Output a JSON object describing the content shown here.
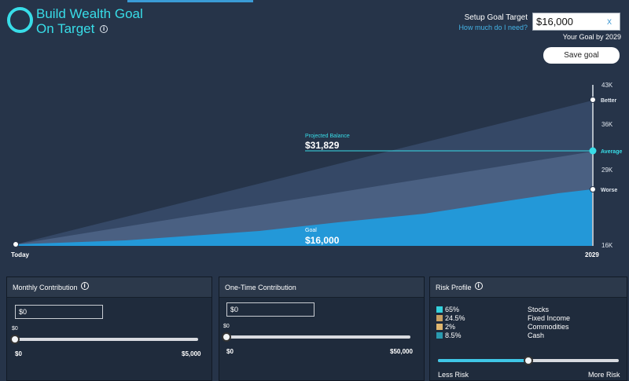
{
  "header": {
    "title": "Build Wealth Goal On Target",
    "info_glyph": "i",
    "setup_label": "Setup Goal Target",
    "how_much_link": "How much do I need?",
    "target_value": "$16,000",
    "clear_glyph": "X",
    "goal_by": "Your Goal by 2029",
    "save_button": "Save goal"
  },
  "chart": {
    "projected_label": "Projected Balance",
    "projected_value": "$31,829",
    "goal_label": "Goal",
    "goal_value": "$16,000",
    "x_start": "Today",
    "x_end": "2029",
    "y_ticks": [
      "43K",
      "36K",
      "29K",
      "16K"
    ],
    "marker_better": "Better",
    "marker_average": "Average",
    "marker_worse": "Worse",
    "colors": {
      "accent": "#38dde8",
      "fill_goal": "#2398d8",
      "fill_mid": "#4a6082",
      "fill_outer": "#354866"
    }
  },
  "chart_data": {
    "type": "area",
    "x": [
      "Today",
      "2029"
    ],
    "yticks": [
      "43K",
      "36K",
      "29K",
      "16K"
    ],
    "series": [
      {
        "name": "Better",
        "values": [
          16000,
          41000
        ]
      },
      {
        "name": "Average",
        "values": [
          16000,
          31829
        ]
      },
      {
        "name": "Worse",
        "values": [
          16000,
          26000
        ]
      }
    ],
    "goal": 16000
  },
  "monthly": {
    "title": "Monthly Contribution",
    "input_value": "$0",
    "slider_label": "$0",
    "min": "$0",
    "max": "$5,000",
    "value": 0
  },
  "onetime": {
    "title": "One-Time Contribution",
    "input_value": "$0",
    "slider_label": "$0",
    "min": "$0",
    "max": "$50,000",
    "value": 0
  },
  "risk": {
    "title": "Risk Profile",
    "items": [
      {
        "pct": "65%",
        "name": "Stocks",
        "color": "#34d2dd"
      },
      {
        "pct": "24.5%",
        "name": "Fixed Income",
        "color": "#c8a063"
      },
      {
        "pct": "2%",
        "name": "Commodities",
        "color": "#e0b770"
      },
      {
        "pct": "8.5%",
        "name": "Cash",
        "color": "#2a9bb0"
      }
    ],
    "less": "Less Risk",
    "more": "More Risk",
    "level": 0.5
  }
}
